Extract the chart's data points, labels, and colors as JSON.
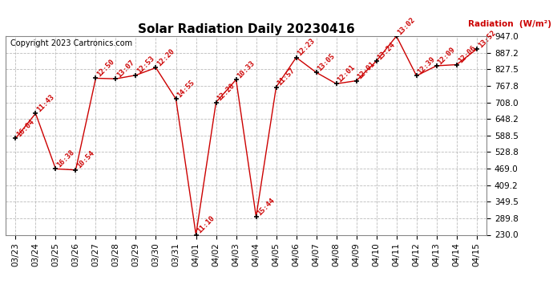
{
  "title": "Solar Radiation Daily 20230416",
  "copyright": "Copyright 2023 Cartronics.com",
  "ylabel": "Radiation  (W/m²)",
  "ylim": [
    230.0,
    947.0
  ],
  "yticks": [
    230.0,
    289.8,
    349.5,
    409.2,
    469.0,
    528.8,
    588.5,
    648.2,
    708.0,
    767.8,
    827.5,
    887.2,
    947.0
  ],
  "dates": [
    "03/23",
    "03/24",
    "03/25",
    "03/26",
    "03/27",
    "03/28",
    "03/29",
    "03/30",
    "03/31",
    "04/01",
    "04/02",
    "04/03",
    "04/04",
    "04/05",
    "04/06",
    "04/07",
    "04/08",
    "04/09",
    "04/10",
    "04/11",
    "04/12",
    "04/13",
    "04/14",
    "04/15"
  ],
  "values": [
    578,
    668,
    468,
    464,
    795,
    793,
    806,
    833,
    720,
    230,
    708,
    790,
    295,
    763,
    870,
    816,
    775,
    786,
    857,
    947,
    804,
    840,
    844,
    900
  ],
  "labels": [
    "16:04",
    "11:43",
    "16:38",
    "10:54",
    "12:50",
    "13:07",
    "12:53",
    "12:20",
    "14:55",
    "11:10",
    "12:20",
    "10:33",
    "15:44",
    "11:57",
    "12:23",
    "13:05",
    "12:01",
    "12:01",
    "13:24",
    "13:02",
    "12:39",
    "12:09",
    "12:06",
    "13:52"
  ],
  "line_color": "#cc0000",
  "marker_color": "#000000",
  "label_color": "#cc0000",
  "bg_color": "#ffffff",
  "grid_color": "#aaaaaa",
  "title_fontsize": 11,
  "label_fontsize": 6.5,
  "tick_fontsize": 7.5,
  "copyright_fontsize": 7,
  "ylabel_fontsize": 7.5
}
